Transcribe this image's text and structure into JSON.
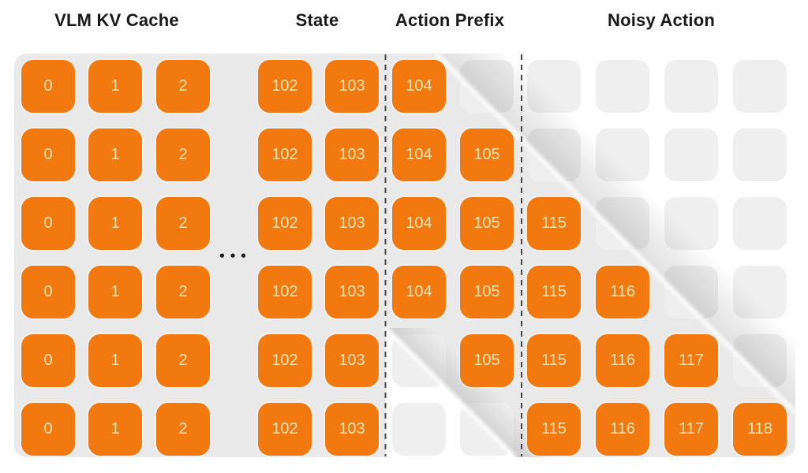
{
  "figure": {
    "sections": [
      {
        "label": "VLM KV Cache"
      },
      {
        "label": "State"
      },
      {
        "label": "Action Prefix"
      },
      {
        "label": "Noisy Action"
      }
    ],
    "ellipsis": "•••",
    "grid": {
      "column_labels": [
        "0",
        "1",
        "2",
        "102",
        "103",
        "104",
        "105",
        "115",
        "116",
        "117",
        "118"
      ],
      "rows": [
        {
          "cells": [
            "0",
            "1",
            "2",
            "102",
            "103",
            "104",
            "",
            "",
            "",
            "",
            ""
          ]
        },
        {
          "cells": [
            "0",
            "1",
            "2",
            "102",
            "103",
            "104",
            "105",
            "",
            "",
            "",
            ""
          ]
        },
        {
          "cells": [
            "0",
            "1",
            "2",
            "102",
            "103",
            "104",
            "105",
            "115",
            "",
            "",
            ""
          ]
        },
        {
          "cells": [
            "0",
            "1",
            "2",
            "102",
            "103",
            "104",
            "105",
            "115",
            "116",
            "",
            ""
          ]
        },
        {
          "cells": [
            "0",
            "1",
            "2",
            "102",
            "103",
            "",
            "105",
            "115",
            "116",
            "117",
            ""
          ]
        },
        {
          "cells": [
            "0",
            "1",
            "2",
            "102",
            "103",
            "",
            "",
            "115",
            "116",
            "117",
            "118"
          ]
        }
      ]
    },
    "colors": {
      "active_cell": "#F2790F",
      "active_cell_text": "#F7E5B4",
      "panel": "#E9E9E9",
      "empty_cell": "#EFEFEF",
      "header_text": "#1A1A1A",
      "dashed_line": "#474747",
      "page_background": "#FFFFFF"
    }
  }
}
